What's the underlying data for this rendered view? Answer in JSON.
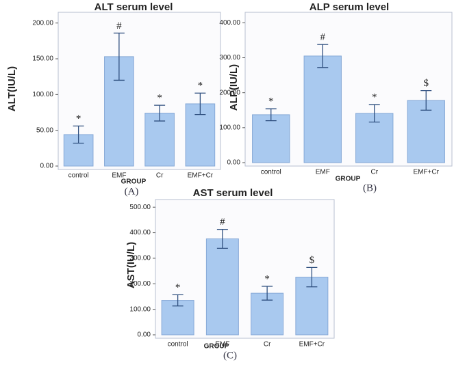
{
  "chart_data": [
    {
      "type": "bar",
      "title": "ALT serum level",
      "ylabel": "ALT(IU/L)",
      "xlabel": "GROUP",
      "panel": "(A)",
      "categories": [
        "control",
        "EMF",
        "Cr",
        "EMF+Cr"
      ],
      "values": [
        44,
        153,
        74,
        87
      ],
      "errors": [
        12,
        33,
        11,
        15
      ],
      "annotations": [
        "*",
        "#",
        "*",
        "*"
      ],
      "color": "#a9c9ef",
      "ylim": [
        0,
        215
      ],
      "yticks": [
        {
          "value": 0,
          "label": "0.00"
        },
        {
          "value": 50,
          "label": "50.00"
        },
        {
          "value": 100,
          "label": "100.00"
        },
        {
          "value": 150,
          "label": "150.00"
        },
        {
          "value": 200,
          "label": "200.00"
        }
      ]
    },
    {
      "type": "bar",
      "title": "ALP serum level",
      "ylabel": "ALP(IU/L)",
      "xlabel": "GROUP",
      "panel": "(B)",
      "categories": [
        "control",
        "EMF",
        "Cr",
        "EMF+Cr"
      ],
      "values": [
        137,
        305,
        141,
        178
      ],
      "errors": [
        17,
        33,
        25,
        28
      ],
      "annotations": [
        "*",
        "#",
        "*",
        "$"
      ],
      "color": "#a9c9ef",
      "ylim": [
        0,
        430
      ],
      "yticks": [
        {
          "value": 0,
          "label": "0.00"
        },
        {
          "value": 100,
          "label": "100.00"
        },
        {
          "value": 200,
          "label": "200.00"
        },
        {
          "value": 300,
          "label": "300.00"
        },
        {
          "value": 400,
          "label": "400.00"
        }
      ]
    },
    {
      "type": "bar",
      "title": "AST serum level",
      "ylabel": "AST(IU/L)",
      "xlabel": "GROUP",
      "panel": "(C)",
      "categories": [
        "control",
        "EMF",
        "Cr",
        "EMF+Cr"
      ],
      "values": [
        135,
        376,
        163,
        226
      ],
      "errors": [
        22,
        37,
        27,
        38
      ],
      "annotations": [
        "*",
        "#",
        "*",
        "$"
      ],
      "color": "#a9c9ef",
      "ylim": [
        0,
        530
      ],
      "yticks": [
        {
          "value": 0,
          "label": "0.00"
        },
        {
          "value": 100,
          "label": "100.00"
        },
        {
          "value": 200,
          "label": "200.00"
        },
        {
          "value": 300,
          "label": "300.00"
        },
        {
          "value": 400,
          "label": "400.00"
        },
        {
          "value": 500,
          "label": "500.00"
        }
      ]
    }
  ]
}
